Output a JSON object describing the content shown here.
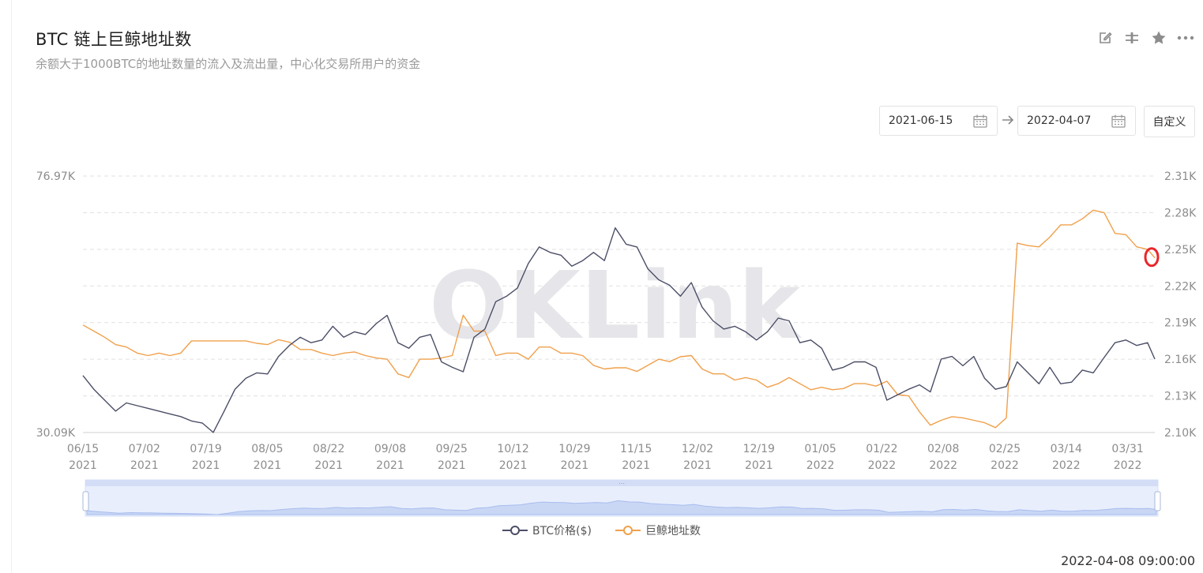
{
  "header": {
    "title": "BTC 链上巨鲸地址数",
    "subtitle": "余额大于1000BTC的地址数量的流入及流出量，中心化交易所用户的资金"
  },
  "toolbar": {
    "icons": [
      "edit-icon",
      "compare-icon",
      "star-icon",
      "more-icon"
    ]
  },
  "date_range": {
    "start": "2021-06-15",
    "end": "2022-04-07",
    "custom_label": "自定义"
  },
  "timestamp": "2022-04-08 09:00:00",
  "watermark": "OKLink",
  "colors": {
    "price": "#4b4e66",
    "whales": "#f0a04b",
    "grid": "#e0e0e0",
    "text": "#8c8c8c",
    "marker": "#e8262a"
  },
  "chart_data": {
    "type": "line",
    "x_ticks": [
      {
        "date": "06/15",
        "year": "2021"
      },
      {
        "date": "07/02",
        "year": "2021"
      },
      {
        "date": "07/19",
        "year": "2021"
      },
      {
        "date": "08/05",
        "year": "2021"
      },
      {
        "date": "08/22",
        "year": "2021"
      },
      {
        "date": "09/08",
        "year": "2021"
      },
      {
        "date": "09/25",
        "year": "2021"
      },
      {
        "date": "10/12",
        "year": "2021"
      },
      {
        "date": "10/29",
        "year": "2021"
      },
      {
        "date": "11/15",
        "year": "2021"
      },
      {
        "date": "12/02",
        "year": "2021"
      },
      {
        "date": "12/19",
        "year": "2021"
      },
      {
        "date": "01/05",
        "year": "2022"
      },
      {
        "date": "01/22",
        "year": "2022"
      },
      {
        "date": "02/08",
        "year": "2022"
      },
      {
        "date": "02/25",
        "year": "2022"
      },
      {
        "date": "03/14",
        "year": "2022"
      },
      {
        "date": "03/31",
        "year": "2022"
      }
    ],
    "x_range": [
      "2021-06-15",
      "2022-04-07"
    ],
    "y_left": {
      "labels": [
        "76.97K",
        "30.09K"
      ],
      "range": [
        30090,
        76970
      ]
    },
    "y_right": {
      "labels": [
        "2.31K",
        "2.28K",
        "2.25K",
        "2.22K",
        "2.19K",
        "2.16K",
        "2.13K",
        "2.10K"
      ],
      "range": [
        2100,
        2310
      ]
    },
    "grid": true,
    "legend_position": "bottom",
    "series": [
      {
        "name": "BTC价格($)",
        "axis": "left",
        "points": [
          [
            "2021-06-15",
            40500
          ],
          [
            "2021-06-18",
            38000
          ],
          [
            "2021-06-21",
            36000
          ],
          [
            "2021-06-24",
            34000
          ],
          [
            "2021-06-27",
            35500
          ],
          [
            "2021-06-30",
            35000
          ],
          [
            "2021-07-03",
            34500
          ],
          [
            "2021-07-06",
            34000
          ],
          [
            "2021-07-09",
            33500
          ],
          [
            "2021-07-12",
            33000
          ],
          [
            "2021-07-15",
            32200
          ],
          [
            "2021-07-18",
            31800
          ],
          [
            "2021-07-21",
            30100
          ],
          [
            "2021-07-24",
            34000
          ],
          [
            "2021-07-27",
            38000
          ],
          [
            "2021-07-30",
            40000
          ],
          [
            "2021-08-02",
            41000
          ],
          [
            "2021-08-05",
            40800
          ],
          [
            "2021-08-08",
            44000
          ],
          [
            "2021-08-11",
            46000
          ],
          [
            "2021-08-14",
            47500
          ],
          [
            "2021-08-17",
            46500
          ],
          [
            "2021-08-20",
            47000
          ],
          [
            "2021-08-23",
            49500
          ],
          [
            "2021-08-26",
            47500
          ],
          [
            "2021-08-29",
            48500
          ],
          [
            "2021-09-01",
            48000
          ],
          [
            "2021-09-04",
            50000
          ],
          [
            "2021-09-07",
            51500
          ],
          [
            "2021-09-10",
            46500
          ],
          [
            "2021-09-13",
            45500
          ],
          [
            "2021-09-16",
            47500
          ],
          [
            "2021-09-19",
            48000
          ],
          [
            "2021-09-22",
            43000
          ],
          [
            "2021-09-25",
            42000
          ],
          [
            "2021-09-28",
            41200
          ],
          [
            "2021-10-01",
            47500
          ],
          [
            "2021-10-04",
            49000
          ],
          [
            "2021-10-07",
            54000
          ],
          [
            "2021-10-10",
            55000
          ],
          [
            "2021-10-13",
            56500
          ],
          [
            "2021-10-16",
            61000
          ],
          [
            "2021-10-19",
            64000
          ],
          [
            "2021-10-22",
            63000
          ],
          [
            "2021-10-25",
            62500
          ],
          [
            "2021-10-28",
            60500
          ],
          [
            "2021-10-31",
            61500
          ],
          [
            "2021-11-03",
            63000
          ],
          [
            "2021-11-06",
            61500
          ],
          [
            "2021-11-09",
            67500
          ],
          [
            "2021-11-12",
            64500
          ],
          [
            "2021-11-15",
            64000
          ],
          [
            "2021-11-18",
            60000
          ],
          [
            "2021-11-21",
            58000
          ],
          [
            "2021-11-24",
            57000
          ],
          [
            "2021-11-27",
            55000
          ],
          [
            "2021-11-30",
            57500
          ],
          [
            "2021-12-03",
            53000
          ],
          [
            "2021-12-06",
            50500
          ],
          [
            "2021-12-09",
            49000
          ],
          [
            "2021-12-12",
            49500
          ],
          [
            "2021-12-15",
            48500
          ],
          [
            "2021-12-18",
            47000
          ],
          [
            "2021-12-21",
            48500
          ],
          [
            "2021-12-24",
            51000
          ],
          [
            "2021-12-27",
            50500
          ],
          [
            "2021-12-30",
            46500
          ],
          [
            "2022-01-02",
            47000
          ],
          [
            "2022-01-05",
            45500
          ],
          [
            "2022-01-08",
            41500
          ],
          [
            "2022-01-11",
            42000
          ],
          [
            "2022-01-14",
            43000
          ],
          [
            "2022-01-17",
            43000
          ],
          [
            "2022-01-20",
            42000
          ],
          [
            "2022-01-23",
            36000
          ],
          [
            "2022-01-26",
            37000
          ],
          [
            "2022-01-29",
            38000
          ],
          [
            "2022-02-01",
            38800
          ],
          [
            "2022-02-04",
            37500
          ],
          [
            "2022-02-07",
            43500
          ],
          [
            "2022-02-10",
            44000
          ],
          [
            "2022-02-13",
            42300
          ],
          [
            "2022-02-16",
            44000
          ],
          [
            "2022-02-19",
            40000
          ],
          [
            "2022-02-22",
            38000
          ],
          [
            "2022-02-25",
            38500
          ],
          [
            "2022-02-28",
            43000
          ],
          [
            "2022-03-03",
            41000
          ],
          [
            "2022-03-06",
            39000
          ],
          [
            "2022-03-09",
            42000
          ],
          [
            "2022-03-12",
            39000
          ],
          [
            "2022-03-15",
            39300
          ],
          [
            "2022-03-18",
            41500
          ],
          [
            "2022-03-21",
            41000
          ],
          [
            "2022-03-24",
            43800
          ],
          [
            "2022-03-27",
            46500
          ],
          [
            "2022-03-30",
            47000
          ],
          [
            "2022-04-02",
            46000
          ],
          [
            "2022-04-05",
            46500
          ],
          [
            "2022-04-07",
            43500
          ]
        ]
      },
      {
        "name": "巨鲸地址数",
        "axis": "right",
        "points": [
          [
            "2021-06-15",
            2188
          ],
          [
            "2021-06-18",
            2183
          ],
          [
            "2021-06-21",
            2178
          ],
          [
            "2021-06-24",
            2172
          ],
          [
            "2021-06-27",
            2170
          ],
          [
            "2021-06-30",
            2165
          ],
          [
            "2021-07-03",
            2163
          ],
          [
            "2021-07-06",
            2165
          ],
          [
            "2021-07-09",
            2163
          ],
          [
            "2021-07-12",
            2165
          ],
          [
            "2021-07-15",
            2175
          ],
          [
            "2021-07-18",
            2175
          ],
          [
            "2021-07-21",
            2175
          ],
          [
            "2021-07-24",
            2175
          ],
          [
            "2021-07-27",
            2175
          ],
          [
            "2021-07-30",
            2175
          ],
          [
            "2021-08-02",
            2173
          ],
          [
            "2021-08-05",
            2172
          ],
          [
            "2021-08-08",
            2176
          ],
          [
            "2021-08-11",
            2174
          ],
          [
            "2021-08-14",
            2168
          ],
          [
            "2021-08-17",
            2168
          ],
          [
            "2021-08-20",
            2165
          ],
          [
            "2021-08-23",
            2163
          ],
          [
            "2021-08-26",
            2165
          ],
          [
            "2021-08-29",
            2166
          ],
          [
            "2021-09-01",
            2163
          ],
          [
            "2021-09-04",
            2161
          ],
          [
            "2021-09-07",
            2160
          ],
          [
            "2021-09-10",
            2148
          ],
          [
            "2021-09-13",
            2145
          ],
          [
            "2021-09-16",
            2160
          ],
          [
            "2021-09-19",
            2160
          ],
          [
            "2021-09-22",
            2161
          ],
          [
            "2021-09-25",
            2163
          ],
          [
            "2021-09-28",
            2196
          ],
          [
            "2021-10-01",
            2183
          ],
          [
            "2021-10-04",
            2183
          ],
          [
            "2021-10-07",
            2163
          ],
          [
            "2021-10-10",
            2165
          ],
          [
            "2021-10-13",
            2165
          ],
          [
            "2021-10-16",
            2160
          ],
          [
            "2021-10-19",
            2170
          ],
          [
            "2021-10-22",
            2170
          ],
          [
            "2021-10-25",
            2165
          ],
          [
            "2021-10-28",
            2165
          ],
          [
            "2021-10-31",
            2163
          ],
          [
            "2021-11-03",
            2155
          ],
          [
            "2021-11-06",
            2152
          ],
          [
            "2021-11-09",
            2153
          ],
          [
            "2021-11-12",
            2153
          ],
          [
            "2021-11-15",
            2150
          ],
          [
            "2021-11-18",
            2155
          ],
          [
            "2021-11-21",
            2160
          ],
          [
            "2021-11-24",
            2158
          ],
          [
            "2021-11-27",
            2162
          ],
          [
            "2021-11-30",
            2163
          ],
          [
            "2021-12-03",
            2152
          ],
          [
            "2021-12-06",
            2148
          ],
          [
            "2021-12-09",
            2148
          ],
          [
            "2021-12-12",
            2143
          ],
          [
            "2021-12-15",
            2145
          ],
          [
            "2021-12-18",
            2143
          ],
          [
            "2021-12-21",
            2137
          ],
          [
            "2021-12-24",
            2140
          ],
          [
            "2021-12-27",
            2145
          ],
          [
            "2021-12-30",
            2140
          ],
          [
            "2022-01-02",
            2135
          ],
          [
            "2022-01-05",
            2137
          ],
          [
            "2022-01-08",
            2135
          ],
          [
            "2022-01-11",
            2136
          ],
          [
            "2022-01-14",
            2140
          ],
          [
            "2022-01-17",
            2140
          ],
          [
            "2022-01-20",
            2138
          ],
          [
            "2022-01-23",
            2142
          ],
          [
            "2022-01-26",
            2131
          ],
          [
            "2022-01-29",
            2130
          ],
          [
            "2022-02-01",
            2117
          ],
          [
            "2022-02-04",
            2106
          ],
          [
            "2022-02-07",
            2110
          ],
          [
            "2022-02-10",
            2113
          ],
          [
            "2022-02-13",
            2112
          ],
          [
            "2022-02-16",
            2110
          ],
          [
            "2022-02-19",
            2108
          ],
          [
            "2022-02-22",
            2104
          ],
          [
            "2022-02-25",
            2112
          ],
          [
            "2022-02-28",
            2255
          ],
          [
            "2022-03-03",
            2253
          ],
          [
            "2022-03-06",
            2252
          ],
          [
            "2022-03-09",
            2260
          ],
          [
            "2022-03-12",
            2270
          ],
          [
            "2022-03-15",
            2270
          ],
          [
            "2022-03-18",
            2275
          ],
          [
            "2022-03-21",
            2282
          ],
          [
            "2022-03-24",
            2280
          ],
          [
            "2022-03-27",
            2263
          ],
          [
            "2022-03-30",
            2262
          ],
          [
            "2022-04-02",
            2252
          ],
          [
            "2022-04-05",
            2250
          ],
          [
            "2022-04-07",
            2243
          ]
        ]
      }
    ]
  }
}
